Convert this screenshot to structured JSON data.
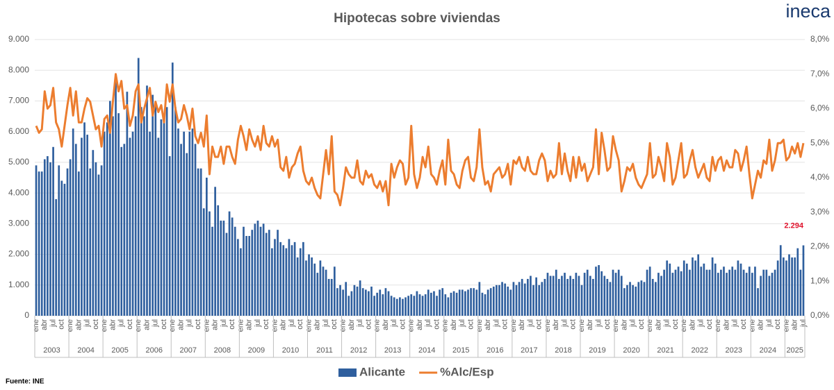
{
  "chart_data": {
    "type": "bar",
    "title": "Hipotecas sobre viviendas",
    "logo": "ineca",
    "source": "Fuente: INE",
    "years": [
      "2003",
      "2004",
      "2005",
      "2006",
      "2007",
      "2008",
      "2009",
      "2010",
      "2011",
      "2012",
      "2013",
      "2014",
      "2015",
      "2016",
      "2017",
      "2018",
      "2019",
      "2020",
      "2021",
      "2022",
      "2023",
      "2024",
      "2025"
    ],
    "categories": [
      "ene",
      null,
      null,
      "abr",
      null,
      null,
      "jul",
      null,
      null,
      "oct",
      null,
      null,
      "ene",
      null,
      null,
      "abr",
      null,
      null,
      "jul",
      null,
      null,
      "oct",
      null,
      null,
      "ene",
      null,
      null,
      "abr",
      null,
      null,
      "jul",
      null,
      null,
      "oct",
      null,
      null,
      "ene",
      null,
      null,
      "abr",
      null,
      null,
      "jul",
      null,
      null,
      "oct",
      null,
      null,
      "ene",
      null,
      null,
      "abr",
      null,
      null,
      "jul",
      null,
      null,
      "oct",
      null,
      null,
      "ene",
      null,
      null,
      "abr",
      null,
      null,
      "jul",
      null,
      null,
      "oct",
      null,
      null,
      "ene",
      null,
      null,
      "abr",
      null,
      null,
      "jul",
      null,
      null,
      "oct",
      null,
      null,
      "ene",
      null,
      null,
      "abr",
      null,
      null,
      "jul",
      null,
      null,
      "oct",
      null,
      null,
      "ene",
      null,
      null,
      "abr",
      null,
      null,
      "jul",
      null,
      null,
      "oct",
      null,
      null,
      "ene",
      null,
      null,
      "abr",
      null,
      null,
      "jul",
      null,
      null,
      "oct",
      null,
      null,
      "ene",
      null,
      null,
      "abr",
      null,
      null,
      "jul",
      null,
      null,
      "oct",
      null,
      null,
      "ene",
      null,
      null,
      "abr",
      null,
      null,
      "jul",
      null,
      null,
      "oct",
      null,
      null,
      "ene",
      null,
      null,
      "abr",
      null,
      null,
      "jul",
      null,
      null,
      "oct",
      null,
      null,
      "ene",
      null,
      null,
      "abr",
      null,
      null,
      "jul",
      null,
      null,
      "oct",
      null,
      null,
      "ene",
      null,
      null,
      "abr",
      null,
      null,
      "jul",
      null,
      null,
      "oct",
      null,
      null,
      "ene",
      null,
      null,
      "abr",
      null,
      null,
      "jul",
      null,
      null,
      "oct",
      null,
      null,
      "ene",
      null,
      null,
      "abr",
      null,
      null,
      "jul",
      null,
      null,
      "oct",
      null,
      null,
      "ene",
      null,
      null,
      "abr",
      null,
      null,
      "jul",
      null,
      null,
      "oct",
      null,
      null,
      "ene",
      null,
      null,
      "abr",
      null,
      null,
      "jul",
      null,
      null,
      "oct",
      null,
      null,
      "ene",
      null,
      null,
      "abr",
      null,
      null,
      "jul",
      null,
      null,
      "oct",
      null,
      null,
      "ene",
      null,
      null,
      "abr",
      null,
      null,
      "jul",
      null,
      null,
      "oct",
      null,
      null,
      "ene",
      null,
      null,
      "abr",
      null,
      null,
      "jul",
      null,
      null,
      "oct",
      null,
      null,
      "ene",
      null,
      null,
      "abr",
      null,
      null,
      "jul"
    ],
    "ylim": [
      0,
      9000
    ],
    "yticks": [
      0,
      {
        "value": 1000,
        "label": "1.000"
      },
      {
        "value": 2000,
        "label": "2.000"
      },
      {
        "value": 3000,
        "label": "3.000"
      },
      {
        "value": 4000,
        "label": "4.000"
      },
      {
        "value": 5000,
        "label": "5.000"
      },
      {
        "value": 6000,
        "label": "6.000"
      },
      {
        "value": 7000,
        "label": "7.000"
      },
      {
        "value": 8000,
        "label": "8.000"
      },
      {
        "value": 9000,
        "label": "9.000"
      }
    ],
    "y2lim": [
      0,
      8
    ],
    "y2ticks": [
      {
        "value": 0,
        "label": "0,0%"
      },
      {
        "value": 1,
        "label": "1,0%"
      },
      {
        "value": 2,
        "label": "2,0%"
      },
      {
        "value": 3,
        "label": "3,0%"
      },
      {
        "value": 4,
        "label": "4,0%"
      },
      {
        "value": 5,
        "label": "5,0%"
      },
      {
        "value": 6,
        "label": "6,0%"
      },
      {
        "value": 7,
        "label": "7,0%"
      },
      {
        "value": 8,
        "label": "8,0%"
      }
    ],
    "grid": true,
    "legend": "bottom",
    "series": [
      {
        "name": "Alicante",
        "type": "bar",
        "color": "#2f5f9e",
        "label_color": "#e0102a",
        "values": [
          4900,
          4700,
          4700,
          5100,
          5200,
          5000,
          5500,
          3800,
          4900,
          4400,
          4300,
          4800,
          5100,
          6100,
          5600,
          4700,
          5800,
          6300,
          5900,
          4800,
          5400,
          5000,
          4600,
          4900,
          6000,
          6300,
          7000,
          6500,
          7700,
          6600,
          5500,
          5600,
          7300,
          5800,
          6000,
          6500,
          8400,
          6800,
          6500,
          7500,
          6000,
          7200,
          6900,
          5800,
          6400,
          6300,
          6800,
          5200,
          8250,
          6800,
          6100,
          5600,
          6000,
          5300,
          6000,
          6100,
          5600,
          4800,
          4800,
          3500,
          4500,
          3400,
          2900,
          4200,
          3600,
          3100,
          3100,
          2700,
          3400,
          3200,
          2900,
          2500,
          2200,
          2900,
          2600,
          2600,
          2800,
          3000,
          3100,
          2900,
          3000,
          2700,
          2800,
          2200,
          2500,
          2800,
          2400,
          2300,
          2200,
          2500,
          2300,
          2400,
          1900,
          2200,
          2400,
          1800,
          2000,
          1900,
          1700,
          1400,
          1800,
          1600,
          1500,
          1200,
          1200,
          1600,
          900,
          1000,
          850,
          1100,
          650,
          800,
          1000,
          950,
          1150,
          900,
          850,
          800,
          950,
          650,
          750,
          850,
          700,
          900,
          800,
          650,
          600,
          550,
          600,
          550,
          600,
          650,
          700,
          650,
          800,
          700,
          650,
          700,
          850,
          750,
          800,
          650,
          850,
          900,
          700,
          600,
          750,
          800,
          750,
          850,
          850,
          800,
          850,
          900,
          900,
          850,
          1100,
          750,
          700,
          850,
          900,
          950,
          1000,
          1000,
          1100,
          1050,
          950,
          850,
          1100,
          1000,
          1100,
          1200,
          1050,
          1200,
          1300,
          1000,
          1250,
          1000,
          1100,
          1200,
          1400,
          1300,
          1300,
          1500,
          1200,
          1300,
          1400,
          1200,
          1300,
          1200,
          1400,
          1300,
          1000,
          1400,
          1500,
          1300,
          1200,
          1600,
          1650,
          1450,
          1300,
          1200,
          1100,
          1500,
          1400,
          1500,
          1300,
          900,
          1000,
          1100,
          1000,
          950,
          1100,
          1150,
          1100,
          1500,
          1600,
          1200,
          1100,
          1400,
          1300,
          1500,
          1800,
          1700,
          1400,
          1500,
          1600,
          1450,
          1800,
          1700,
          1500,
          1900,
          1800,
          2000,
          1600,
          1700,
          1500,
          1500,
          1900,
          1700,
          1400,
          1500,
          1600,
          1400,
          1500,
          1600,
          1500,
          1800,
          1700,
          1500,
          1400,
          1600,
          1400,
          1600,
          900,
          1300,
          1500,
          1500,
          1300,
          1400,
          1500,
          1800,
          2300,
          1900,
          1800,
          2000,
          1900,
          1900,
          2200,
          1500,
          2294
        ],
        "value_labels": [
          null,
          null,
          null,
          null,
          null,
          null,
          null,
          null,
          null,
          null,
          null,
          null,
          null,
          null,
          null,
          null,
          null,
          null,
          null,
          null,
          null,
          null,
          null,
          null,
          null,
          null,
          null,
          null,
          null,
          null,
          null,
          null,
          null,
          null,
          null,
          null,
          null,
          null,
          null,
          null,
          null,
          null,
          null,
          null,
          null,
          null,
          null,
          null,
          null,
          null,
          null,
          null,
          null,
          null,
          null,
          null,
          null,
          null,
          null,
          null,
          null,
          null,
          null,
          null,
          null,
          null,
          null,
          null,
          null,
          null,
          null,
          null,
          null,
          null,
          null,
          null,
          null,
          null,
          null,
          null,
          null,
          null,
          null,
          null,
          null,
          null,
          null,
          null,
          null,
          null,
          null,
          null,
          null,
          null,
          null,
          null,
          null,
          null,
          null,
          null,
          null,
          null,
          null,
          null,
          null,
          null,
          null,
          null,
          null,
          null,
          null,
          null,
          null,
          null,
          null,
          null,
          null,
          null,
          null,
          null,
          null,
          null,
          null,
          null,
          null,
          null,
          null,
          null,
          null,
          null,
          null,
          null,
          null,
          null,
          null,
          null,
          null,
          null,
          null,
          null,
          null,
          null,
          null,
          null,
          null,
          null,
          null,
          null,
          null,
          null,
          null,
          null,
          null,
          null,
          null,
          null,
          null,
          null,
          null,
          null,
          null,
          null,
          null,
          null,
          null,
          null,
          null,
          null,
          null,
          null,
          null,
          null,
          null,
          null,
          null,
          null,
          null,
          null,
          null,
          null,
          null,
          null,
          null,
          null,
          null,
          null,
          null,
          null,
          null,
          null,
          null,
          null,
          null,
          null,
          null,
          null,
          null,
          null,
          null,
          null,
          null,
          null,
          null,
          null,
          null,
          null,
          null,
          null,
          null,
          null,
          null,
          null,
          null,
          null,
          null,
          null,
          null,
          null,
          null,
          null,
          null,
          null,
          null,
          null,
          null,
          null,
          null,
          null,
          null,
          null,
          null,
          null,
          null,
          null,
          null,
          null,
          null,
          null,
          null,
          null,
          null,
          null,
          null,
          null,
          null,
          null,
          null,
          null,
          null,
          null,
          null,
          null,
          null,
          null,
          null,
          null,
          null,
          null,
          null,
          null,
          null,
          null,
          null,
          null,
          null,
          null,
          null,
          null,
          null,
          null,
          "2.294"
        ]
      },
      {
        "name": "%Alc/Esp",
        "type": "line",
        "axis": "y2",
        "color": "#ec7d2f",
        "values": [
          5.5,
          5.3,
          5.4,
          6.5,
          6.0,
          6.1,
          6.6,
          5.6,
          5.4,
          4.9,
          5.5,
          6.1,
          6.6,
          5.8,
          6.5,
          5.6,
          5.6,
          6.0,
          6.3,
          6.2,
          5.8,
          5.4,
          5.5,
          4.9,
          5.7,
          5.8,
          5.3,
          6.2,
          7.0,
          6.5,
          6.8,
          6.0,
          6.1,
          5.5,
          5.8,
          6.5,
          6.7,
          5.6,
          6.0,
          6.3,
          6.6,
          5.8,
          6.2,
          5.9,
          6.1,
          5.6,
          6.7,
          6.2,
          6.7,
          6.0,
          5.6,
          5.7,
          6.1,
          5.8,
          5.4,
          6.0,
          5.2,
          5.0,
          5.3,
          4.9,
          5.8,
          4.1,
          4.9,
          4.6,
          4.6,
          4.9,
          4.4,
          4.9,
          4.9,
          4.6,
          4.4,
          5.1,
          5.5,
          5.2,
          4.8,
          5.4,
          5.1,
          4.9,
          5.2,
          4.8,
          5.5,
          5.0,
          4.9,
          5.2,
          4.9,
          5.1,
          4.3,
          4.2,
          4.6,
          4.0,
          4.3,
          4.4,
          4.7,
          4.9,
          4.2,
          3.9,
          3.8,
          4.0,
          3.7,
          3.5,
          3.4,
          4.1,
          4.8,
          4.1,
          5.2,
          3.6,
          3.5,
          3.2,
          3.7,
          4.3,
          4.1,
          4.0,
          4.0,
          4.5,
          3.9,
          3.8,
          4.2,
          4.0,
          4.1,
          3.8,
          3.7,
          3.9,
          3.6,
          3.9,
          3.2,
          4.4,
          4.0,
          4.3,
          4.5,
          4.4,
          3.8,
          4.0,
          5.5,
          4.1,
          3.7,
          4.0,
          4.6,
          4.3,
          4.9,
          4.1,
          4.0,
          3.8,
          4.2,
          4.5,
          3.8,
          5.1,
          4.2,
          4.1,
          3.8,
          3.7,
          4.2,
          4.5,
          4.6,
          4.0,
          3.9,
          4.3,
          5.4,
          4.3,
          3.8,
          3.9,
          3.6,
          4.1,
          4.2,
          4.3,
          4.0,
          4.1,
          4.4,
          3.8,
          4.5,
          4.4,
          4.6,
          4.3,
          4.2,
          4.6,
          4.2,
          4.1,
          4.1,
          4.5,
          4.7,
          4.5,
          3.9,
          4.2,
          4.0,
          4.1,
          5.0,
          4.1,
          4.7,
          4.2,
          3.9,
          4.6,
          4.0,
          4.6,
          4.2,
          4.4,
          3.9,
          4.1,
          4.3,
          5.4,
          4.1,
          5.3,
          4.8,
          4.2,
          4.3,
          5.2,
          4.8,
          4.5,
          3.6,
          3.9,
          4.3,
          4.2,
          4.4,
          4.0,
          3.8,
          3.7,
          3.9,
          4.1,
          5.0,
          4.0,
          4.1,
          4.6,
          4.3,
          3.9,
          5.0,
          4.6,
          3.8,
          4.0,
          4.5,
          5.0,
          4.0,
          4.1,
          4.5,
          4.8,
          4.3,
          4.0,
          4.2,
          4.4,
          4.0,
          3.9,
          4.6,
          4.2,
          4.5,
          4.6,
          4.2,
          4.5,
          4.3,
          4.3,
          4.8,
          4.7,
          4.2,
          4.5,
          4.9,
          4.1,
          3.4,
          3.8,
          4.2,
          4.0,
          4.5,
          4.4,
          5.1,
          4.2,
          4.5,
          5.0,
          5.0,
          5.1,
          4.5,
          4.6,
          4.9,
          4.7,
          5.0,
          4.6,
          5.0
        ]
      }
    ]
  }
}
